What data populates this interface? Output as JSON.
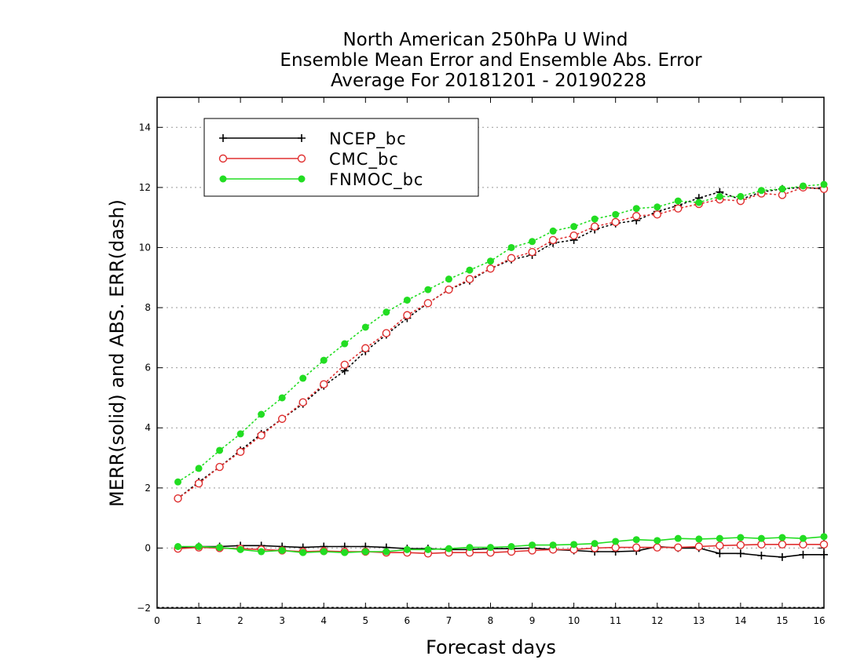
{
  "chart_data": {
    "type": "line",
    "title": [
      "North American 250hPa U Wind",
      "Ensemble Mean Error and Ensemble Abs. Error",
      "Average For 20181201 - 20190228"
    ],
    "xlabel": "Forecast days",
    "ylabel": "MERR(solid) and ABS. ERR(dash)",
    "xlim": [
      0,
      16
    ],
    "ylim": [
      -2,
      15
    ],
    "xticks": [
      0,
      1,
      2,
      3,
      4,
      5,
      6,
      7,
      8,
      9,
      10,
      11,
      12,
      13,
      14,
      15,
      16
    ],
    "yticks": [
      -2,
      0,
      2,
      4,
      6,
      8,
      10,
      12,
      14
    ],
    "grid": "horizontal dotted",
    "legend_position": "top-left",
    "x": [
      0.5,
      1,
      1.5,
      2,
      2.5,
      3,
      3.5,
      4,
      4.5,
      5,
      5.5,
      6,
      6.5,
      7,
      7.5,
      8,
      8.5,
      9,
      9.5,
      10,
      10.5,
      11,
      11.5,
      12,
      12.5,
      13,
      13.5,
      14,
      14.5,
      15,
      15.5,
      16
    ],
    "series": [
      {
        "name": "NCEP_bc",
        "color": "#000000",
        "marker": "plus",
        "merr": [
          0.0,
          0.05,
          0.05,
          0.08,
          0.08,
          0.05,
          0.02,
          0.05,
          0.05,
          0.05,
          0.02,
          -0.02,
          -0.02,
          -0.05,
          -0.05,
          -0.02,
          -0.02,
          0.0,
          -0.05,
          -0.08,
          -0.12,
          -0.12,
          -0.1,
          0.05,
          0.0,
          0.0,
          -0.18,
          -0.18,
          -0.25,
          -0.3,
          -0.22,
          -0.22
        ],
        "abs_err": [
          1.65,
          2.2,
          2.7,
          3.25,
          3.8,
          4.3,
          4.8,
          5.4,
          5.9,
          6.55,
          7.1,
          7.65,
          8.15,
          8.6,
          8.9,
          9.3,
          9.6,
          9.75,
          10.15,
          10.25,
          10.6,
          10.8,
          10.9,
          11.2,
          11.4,
          11.65,
          11.85,
          11.6,
          11.85,
          11.95,
          12.0,
          11.95
        ]
      },
      {
        "name": "CMC_bc",
        "color": "#e03030",
        "marker": "open-circle",
        "merr": [
          -0.02,
          0.02,
          0.0,
          -0.02,
          -0.05,
          -0.08,
          -0.12,
          -0.1,
          -0.12,
          -0.12,
          -0.15,
          -0.15,
          -0.18,
          -0.15,
          -0.15,
          -0.15,
          -0.12,
          -0.08,
          -0.05,
          -0.05,
          0.0,
          0.02,
          0.02,
          0.02,
          0.02,
          0.05,
          0.08,
          0.1,
          0.12,
          0.12,
          0.12,
          0.12
        ],
        "abs_err": [
          1.65,
          2.15,
          2.7,
          3.2,
          3.75,
          4.3,
          4.85,
          5.45,
          6.1,
          6.65,
          7.15,
          7.75,
          8.15,
          8.6,
          8.95,
          9.3,
          9.65,
          9.85,
          10.25,
          10.4,
          10.7,
          10.85,
          11.05,
          11.1,
          11.3,
          11.45,
          11.6,
          11.55,
          11.8,
          11.75,
          12.0,
          11.95
        ]
      },
      {
        "name": "FNMOC_bc",
        "color": "#22dd22",
        "marker": "filled-circle",
        "merr": [
          0.05,
          0.05,
          0.02,
          -0.05,
          -0.12,
          -0.08,
          -0.15,
          -0.12,
          -0.15,
          -0.12,
          -0.12,
          -0.05,
          -0.05,
          -0.02,
          0.02,
          0.02,
          0.05,
          0.1,
          0.1,
          0.12,
          0.15,
          0.22,
          0.28,
          0.25,
          0.32,
          0.3,
          0.32,
          0.35,
          0.32,
          0.35,
          0.32,
          0.38
        ],
        "abs_err": [
          2.2,
          2.65,
          3.25,
          3.8,
          4.45,
          5.0,
          5.65,
          6.25,
          6.8,
          7.35,
          7.85,
          8.25,
          8.6,
          8.95,
          9.25,
          9.55,
          10.0,
          10.2,
          10.55,
          10.7,
          10.95,
          11.1,
          11.3,
          11.35,
          11.55,
          11.5,
          11.7,
          11.7,
          11.9,
          11.95,
          12.05,
          12.1
        ]
      }
    ]
  }
}
